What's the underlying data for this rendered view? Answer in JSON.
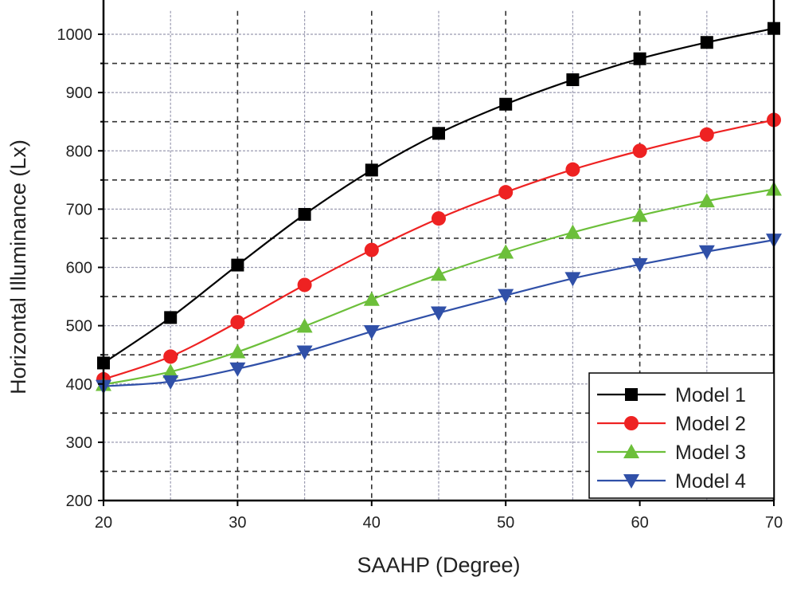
{
  "chart_data": {
    "type": "line",
    "title": "",
    "xlabel": "SAAHP (Degree)",
    "ylabel": "Horizontal Illuminance (Lx)",
    "xlim": [
      20,
      70
    ],
    "ylim": [
      200,
      1040
    ],
    "xticks": [
      20,
      30,
      40,
      50,
      60,
      70
    ],
    "yticks": [
      200,
      300,
      400,
      500,
      600,
      700,
      800,
      900,
      1000
    ],
    "grid": true,
    "legend_position": "bottom-right",
    "x": [
      20,
      25,
      30,
      35,
      40,
      45,
      50,
      55,
      60,
      65,
      70
    ],
    "series": [
      {
        "name": "Model 1",
        "color": "#000000",
        "marker": "square",
        "values": [
          436,
          514,
          604,
          691,
          767,
          830,
          880,
          922,
          958,
          986,
          1010
        ]
      },
      {
        "name": "Model 2",
        "color": "#ee2222",
        "marker": "circle",
        "values": [
          408,
          447,
          506,
          570,
          630,
          684,
          729,
          768,
          800,
          828,
          853
        ]
      },
      {
        "name": "Model 3",
        "color": "#6cbf3a",
        "marker": "triangle-up",
        "values": [
          399,
          421,
          455,
          499,
          545,
          588,
          626,
          660,
          689,
          714,
          734
        ]
      },
      {
        "name": "Model 4",
        "color": "#3050a8",
        "marker": "triangle-down",
        "values": [
          396,
          404,
          426,
          455,
          490,
          522,
          552,
          581,
          605,
          627,
          647
        ]
      }
    ]
  }
}
